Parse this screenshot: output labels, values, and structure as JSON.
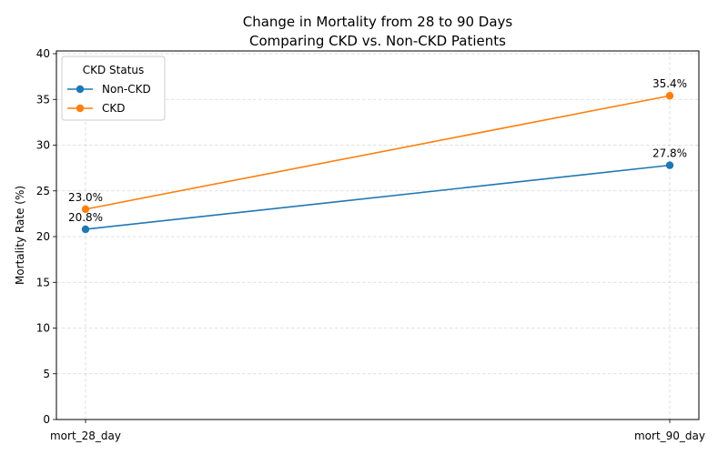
{
  "chart_data": {
    "type": "line",
    "title": "Change in Mortality from 28 to 90 Days",
    "subtitle": "Comparing CKD vs. Non-CKD Patients",
    "xlabel": "",
    "ylabel": "Mortality Rate (%)",
    "categories": [
      "mort_28_day",
      "mort_90_day"
    ],
    "ylim": [
      0,
      40.3
    ],
    "yticks": [
      0,
      5,
      10,
      15,
      20,
      25,
      30,
      35,
      40
    ],
    "grid": true,
    "legend": {
      "title": "CKD Status",
      "position": "top-left"
    },
    "series": [
      {
        "name": "Non-CKD",
        "values": [
          20.8,
          27.8
        ],
        "labels": [
          "20.8%",
          "27.8%"
        ],
        "color": "#1f77b4"
      },
      {
        "name": "CKD",
        "values": [
          23.0,
          35.4
        ],
        "labels": [
          "23.0%",
          "35.4%"
        ],
        "color": "#ff7f0e"
      }
    ]
  }
}
